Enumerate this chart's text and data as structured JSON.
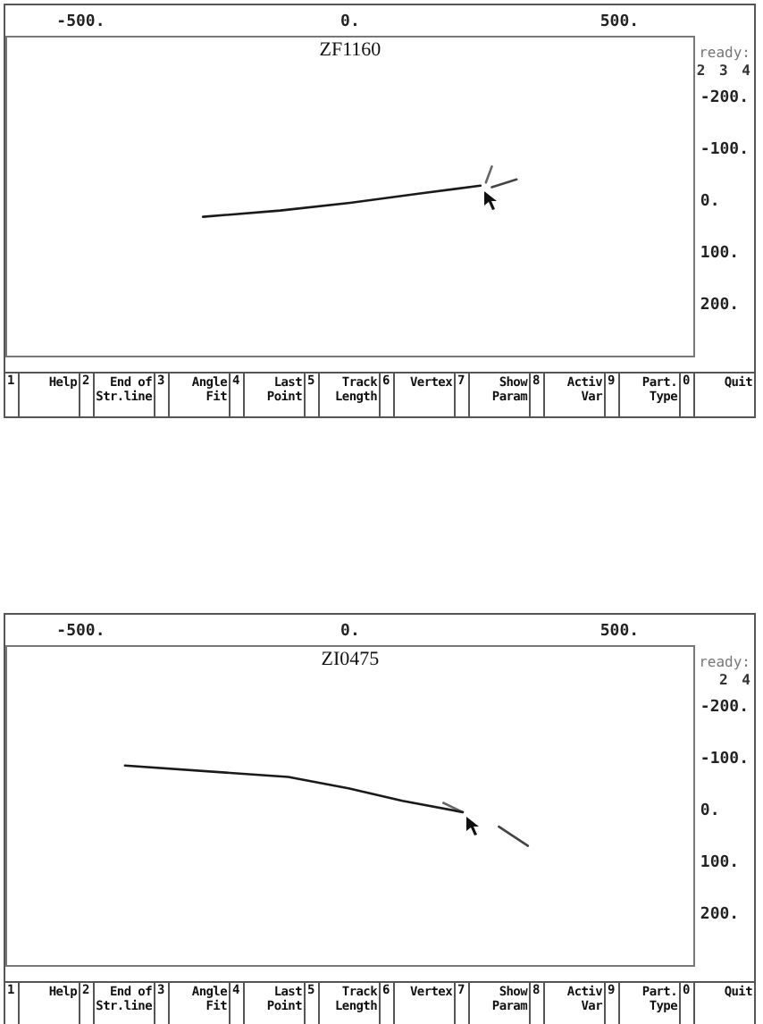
{
  "chart_data": [
    {
      "type": "line",
      "title": "ZF1160",
      "xlim": [
        -640,
        640
      ],
      "xticks": [
        {
          "value": -500,
          "label": "-500."
        },
        {
          "value": 0,
          "label": "0."
        },
        {
          "value": 500,
          "label": "500."
        }
      ],
      "ylim": [
        300,
        -320
      ],
      "yticks": [
        {
          "value": -200,
          "label": "-200."
        },
        {
          "value": -100,
          "label": "-100."
        },
        {
          "value": 0,
          "label": "0."
        },
        {
          "value": 100,
          "label": "100."
        },
        {
          "value": 200,
          "label": "200."
        }
      ],
      "grid": false,
      "legend": false,
      "marker": "none",
      "series": [
        {
          "color": "#1a1a1a",
          "x": [
            -273,
            -130,
            0,
            130,
            242
          ],
          "values": [
            30,
            18,
            3,
            -15,
            -30
          ]
        },
        {
          "color": "#444444",
          "x": [
            263,
            309
          ],
          "values": [
            -27,
            -42
          ]
        },
        {
          "color": "#666666",
          "x": [
            252,
            263
          ],
          "values": [
            -36,
            -67
          ]
        }
      ],
      "annotations": [
        "ready:",
        "2 3 4",
        "1 Help",
        "2 End of Str.line",
        "3 Angle Fit",
        "4 Last Point",
        "5 Track Length",
        "6 Vertex",
        "7 Show Param",
        "8 Activ Var",
        "9 Part. Type",
        "0 Quit"
      ]
    },
    {
      "type": "line",
      "title": "ZI0475",
      "xlim": [
        -640,
        640
      ],
      "xticks": [
        {
          "value": -500,
          "label": "-500."
        },
        {
          "value": 0,
          "label": "0."
        },
        {
          "value": 500,
          "label": "500."
        }
      ],
      "ylim": [
        300,
        -320
      ],
      "yticks": [
        {
          "value": -200,
          "label": "-200."
        },
        {
          "value": -100,
          "label": "-100."
        },
        {
          "value": 0,
          "label": "0."
        },
        {
          "value": 100,
          "label": "100."
        },
        {
          "value": 200,
          "label": "200."
        }
      ],
      "grid": false,
      "legend": false,
      "marker": "none",
      "series": [
        {
          "color": "#1a1a1a",
          "x": [
            -418,
            -115,
            -3,
            97,
            209
          ],
          "values": [
            -87,
            -65,
            -43,
            -19,
            3
          ]
        },
        {
          "color": "#666666",
          "x": [
            173,
            209
          ],
          "values": [
            -15,
            3
          ]
        },
        {
          "color": "#444444",
          "x": [
            276,
            330
          ],
          "values": [
            31,
            68
          ]
        }
      ],
      "annotations": [
        "ready:",
        "2 4",
        "1 Help",
        "2 End of Str.line",
        "3 Angle Fit",
        "4 Last Point",
        "5 Track Length",
        "6 Vertex",
        "7 Show Param",
        "8 Activ Var",
        "9 Part. Type",
        "0 Quit"
      ]
    }
  ]
}
